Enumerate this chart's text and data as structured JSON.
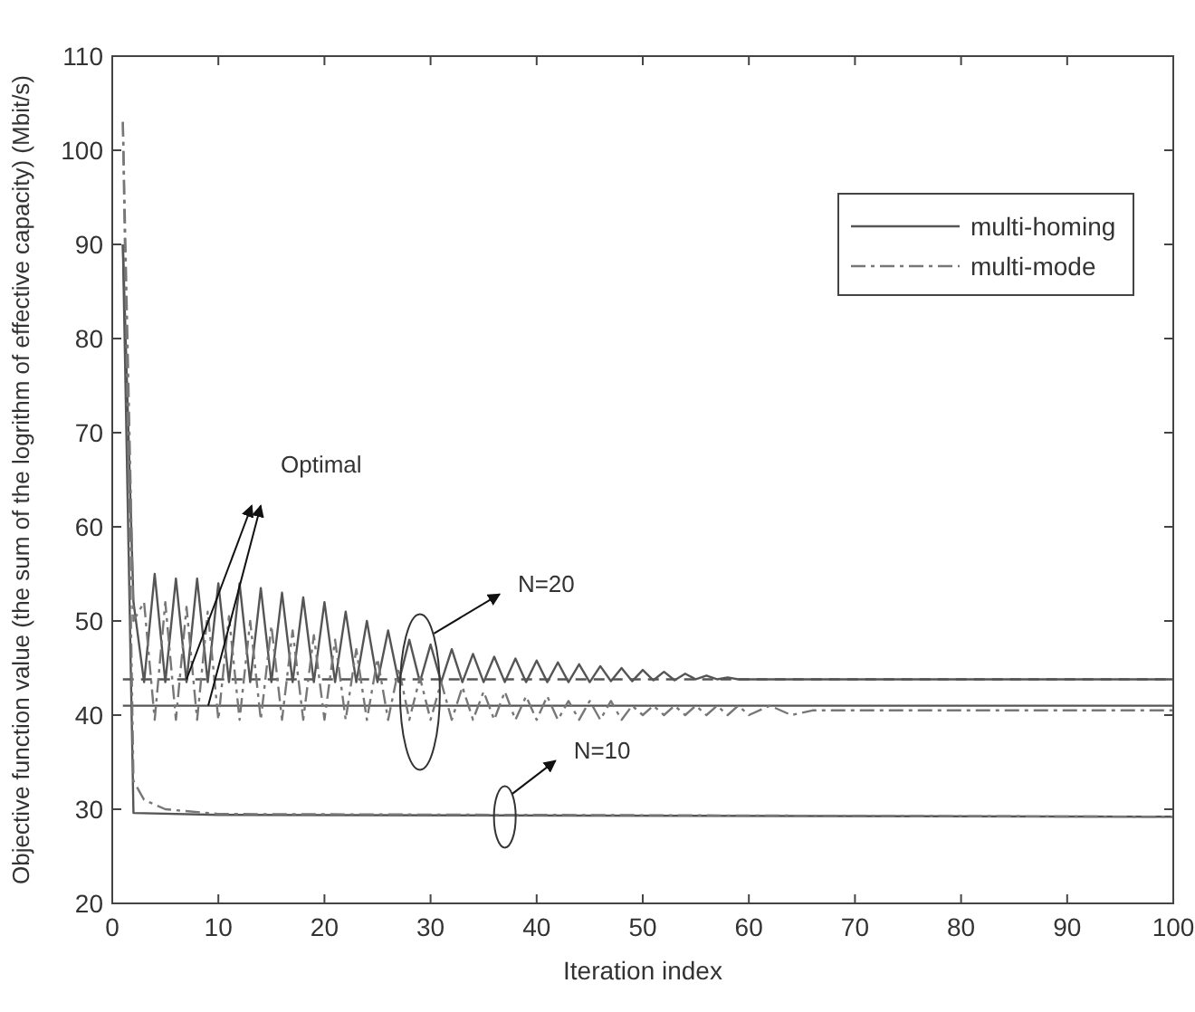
{
  "chart_data": {
    "type": "line",
    "xlabel": "Iteration index",
    "ylabel": "Objective function value (the sum of the logrithm of effective capacity) (Mbit/s)",
    "xlim": [
      0,
      100
    ],
    "ylim": [
      20,
      110
    ],
    "xticks": [
      0,
      10,
      20,
      30,
      40,
      50,
      60,
      70,
      80,
      90,
      100
    ],
    "yticks": [
      20,
      30,
      40,
      50,
      60,
      70,
      80,
      90,
      100,
      110
    ],
    "grid": false,
    "legend": "top right",
    "marker": "none",
    "series": [
      {
        "name": "multi-homing",
        "color": "#555555",
        "line_style": "solid",
        "x": [
          1,
          2,
          3,
          4,
          5,
          6,
          7,
          8,
          9,
          10,
          11,
          12,
          13,
          14,
          15,
          16,
          17,
          18,
          19,
          20,
          21,
          22,
          23,
          24,
          25,
          26,
          27,
          28,
          29,
          30,
          31,
          32,
          33,
          34,
          35,
          36,
          37,
          38,
          39,
          40,
          41,
          42,
          43,
          44,
          45,
          46,
          47,
          48,
          49,
          50,
          51,
          52,
          53,
          54,
          55,
          56,
          57,
          58,
          59,
          60,
          100
        ],
        "values": [
          90,
          52,
          43.5,
          55,
          43.5,
          54.5,
          43.5,
          54.5,
          43.5,
          54,
          43.5,
          54,
          43.5,
          53.5,
          43.5,
          53,
          43.5,
          52.5,
          43.5,
          52,
          43.5,
          51,
          43.5,
          50,
          43.5,
          49,
          43.5,
          48,
          43.5,
          47.5,
          43.5,
          47,
          43.5,
          46.5,
          43.5,
          46.2,
          43.5,
          46,
          43.5,
          45.8,
          43.5,
          45.6,
          43.5,
          45.4,
          43.5,
          45.2,
          43.6,
          45,
          43.6,
          44.8,
          43.7,
          44.6,
          43.7,
          44.4,
          43.8,
          44.2,
          43.8,
          44,
          43.8,
          43.8,
          43.8
        ]
      },
      {
        "name": "multi-mode",
        "color": "#777777",
        "line_style": "dashdot",
        "x": [
          1,
          2,
          3,
          4,
          5,
          6,
          7,
          8,
          9,
          10,
          11,
          12,
          13,
          14,
          15,
          16,
          17,
          18,
          19,
          20,
          21,
          22,
          23,
          24,
          25,
          26,
          27,
          28,
          29,
          30,
          31,
          32,
          33,
          34,
          35,
          36,
          37,
          38,
          39,
          40,
          41,
          42,
          43,
          44,
          45,
          46,
          47,
          48,
          49,
          50,
          51,
          52,
          53,
          54,
          55,
          56,
          57,
          58,
          59,
          60,
          62,
          64,
          66,
          100
        ],
        "values": [
          103,
          50,
          52,
          39.5,
          52,
          39.5,
          51.5,
          39.5,
          51,
          39.5,
          50.5,
          39.5,
          50,
          39.5,
          49.5,
          39.5,
          49,
          39.5,
          48.5,
          39.5,
          48,
          39.5,
          47,
          39.5,
          46,
          39.5,
          45,
          39.5,
          44,
          39.5,
          43.5,
          39.5,
          43,
          39.5,
          42.5,
          39.5,
          42.5,
          39.5,
          42,
          39.5,
          42,
          39.5,
          41.5,
          39.5,
          41.5,
          39.5,
          41.5,
          39.5,
          41,
          40,
          41,
          40,
          41,
          40,
          41,
          40,
          41,
          40,
          41,
          40,
          41,
          40,
          40.5,
          40.5
        ]
      },
      {
        "color": "#555555",
        "line_style": "solid",
        "x": [
          1,
          2,
          10,
          100
        ],
        "values": [
          90,
          29.6,
          29.4,
          29.2
        ]
      },
      {
        "color": "#777777",
        "line_style": "dashdot",
        "x": [
          1,
          2,
          3,
          5,
          10,
          100
        ],
        "values": [
          103,
          33,
          31,
          30,
          29.5,
          29.2
        ]
      }
    ],
    "ref_lines": [
      {
        "axis": "y",
        "value": 43.8,
        "color": "#555555",
        "line_style": "dashed"
      },
      {
        "axis": "y",
        "value": 41,
        "color": "#555555",
        "line_style": "solid"
      }
    ],
    "annotations": [
      "Optimal",
      "N=20",
      "N=10"
    ]
  }
}
